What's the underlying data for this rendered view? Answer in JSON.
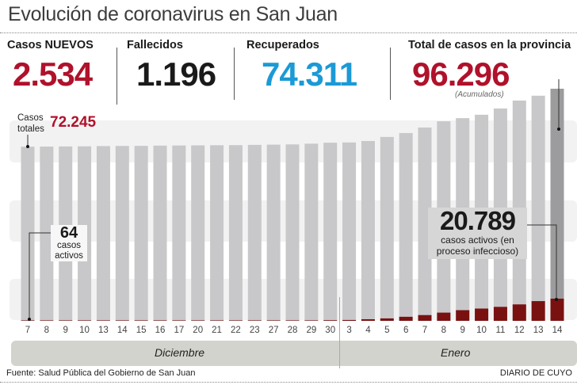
{
  "title": "Evolución de coronavirus en San Juan",
  "stats": [
    {
      "label": "Casos NUEVOS",
      "value": "2.534",
      "color": "#b0112b"
    },
    {
      "label": "Fallecidos",
      "value": "1.196",
      "color": "#1a1a1a"
    },
    {
      "label": "Recuperados",
      "value": "74.311",
      "color": "#1a9ad6"
    },
    {
      "label": "Total de casos en la provincia",
      "value": "96.296",
      "color": "#b0112b",
      "note": "(Acumulados)"
    }
  ],
  "annotations": {
    "totales_label_1": "Casos",
    "totales_label_2": "totales",
    "totales_value": "72.245",
    "activos_first_value": "64",
    "activos_first_1": "casos",
    "activos_first_2": "activos",
    "activos_last_value": "20.789",
    "activos_last_1": "casos activos (en",
    "activos_last_2": "proceso infeccioso)"
  },
  "chart_data": {
    "type": "bar",
    "categories": [
      "7",
      "8",
      "9",
      "10",
      "13",
      "14",
      "15",
      "16",
      "17",
      "20",
      "21",
      "22",
      "23",
      "27",
      "28",
      "29",
      "30",
      "3",
      "4",
      "5",
      "6",
      "7",
      "8",
      "9",
      "10",
      "11",
      "12",
      "13",
      "14"
    ],
    "months": [
      {
        "label": "Diciembre"
      },
      {
        "label": "Enero"
      }
    ],
    "series": [
      {
        "values": [
          72245,
          72300,
          72350,
          72400,
          72500,
          72550,
          72600,
          72700,
          72750,
          72800,
          72850,
          72900,
          73000,
          73100,
          73200,
          73500,
          73900,
          74000,
          74600,
          76300,
          77900,
          80200,
          82800,
          84100,
          85500,
          88100,
          91400,
          93400,
          96296
        ],
        "color": "#c8c8ca"
      },
      {
        "values": [
          64,
          70,
          75,
          80,
          90,
          100,
          110,
          120,
          130,
          150,
          170,
          200,
          250,
          300,
          350,
          450,
          600,
          800,
          1500,
          2300,
          3800,
          5400,
          7700,
          10000,
          11500,
          13100,
          15400,
          18500,
          20789
        ],
        "color": "#7a1111"
      }
    ],
    "last_bar_color": "#9c9c9e",
    "grid": false
  },
  "footer": {
    "source": "Fuente: Salud Pública del Gobierno de San Juan",
    "brand": "DIARIO DE CUYO"
  }
}
